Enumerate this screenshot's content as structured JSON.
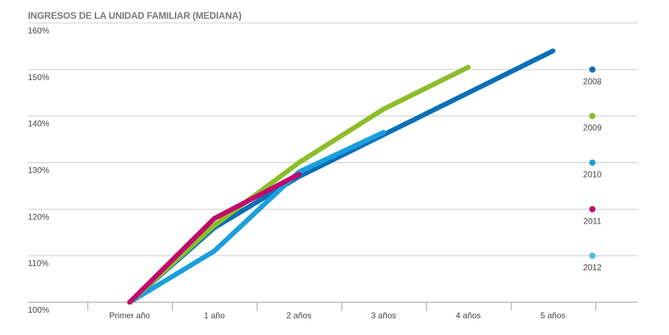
{
  "chart_data": {
    "type": "line",
    "title": "INGRESOS DE LA UNIDAD FAMILIAR (MEDIANA)",
    "categories": [
      "Primer año",
      "1 año",
      "2 años",
      "3 años",
      "4 años",
      "5 años"
    ],
    "y_ticks": [
      "100%",
      "110%",
      "120%",
      "130%",
      "140%",
      "150%",
      "160%"
    ],
    "ylim": [
      100,
      160
    ],
    "grid": true,
    "legend_position": "right",
    "series": [
      {
        "name": "2008",
        "color": "#0a6fb8",
        "values": [
          100,
          116,
          127,
          136,
          145,
          154
        ]
      },
      {
        "name": "2009",
        "color": "#8cbe2a",
        "values": [
          100,
          116.5,
          130,
          141.5,
          150.5,
          null
        ]
      },
      {
        "name": "2010",
        "color": "#19a0dc",
        "values": [
          100,
          111,
          128,
          136.5,
          null,
          null
        ]
      },
      {
        "name": "2011",
        "color": "#c2096a",
        "values": [
          100,
          118,
          127.5,
          null,
          null,
          null
        ]
      },
      {
        "name": "2012",
        "color": "#4fb8e8",
        "values": [
          null,
          null,
          null,
          null,
          null,
          null
        ]
      }
    ]
  }
}
